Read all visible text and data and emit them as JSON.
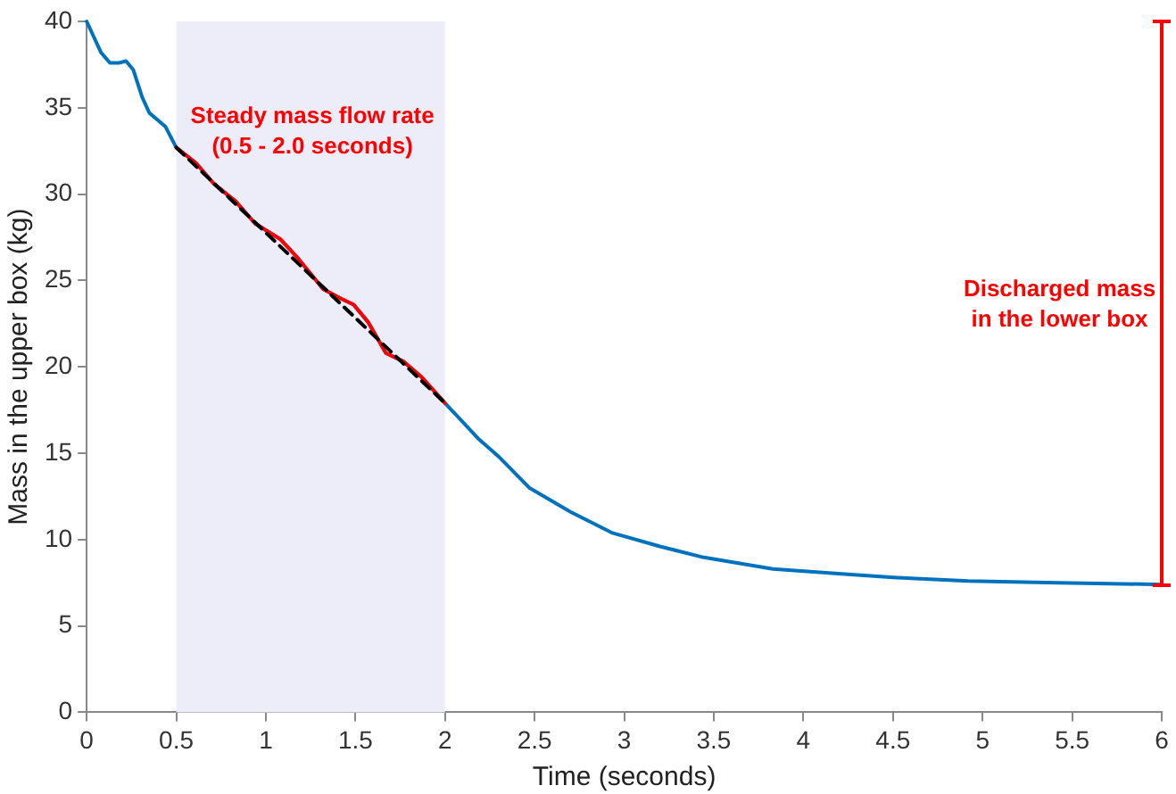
{
  "chart_data": {
    "type": "line",
    "xlabel": "Time (seconds)",
    "ylabel": "Mass in the upper box (kg)",
    "xlim": [
      0,
      6
    ],
    "xticks": [
      0,
      0.5,
      1,
      1.5,
      2,
      2.5,
      3,
      3.5,
      4,
      4.5,
      5,
      5.5,
      6
    ],
    "ylim": [
      0,
      40
    ],
    "yticks": [
      0,
      5,
      10,
      15,
      20,
      25,
      30,
      35,
      40
    ],
    "grid": false,
    "legend": false,
    "marker": "none",
    "series": [
      {
        "color": "#0072bd",
        "x": [
          0,
          0.08,
          0.13,
          0.18,
          0.22,
          0.26,
          0.31,
          0.35,
          0.44,
          0.5,
          0.61,
          0.71,
          0.83,
          0.94,
          1.08,
          1.17,
          1.32,
          1.41,
          1.49,
          1.57,
          1.67,
          1.77,
          1.87,
          2.0,
          2.19,
          2.3,
          2.47,
          2.7,
          2.93,
          3.2,
          3.43,
          3.83,
          4.23,
          4.52,
          4.92,
          5.42,
          6.0
        ],
        "values": [
          40,
          38.2,
          37.6,
          37.6,
          37.7,
          37.2,
          35.6,
          34.7,
          33.9,
          32.7,
          31.8,
          30.6,
          29.6,
          28.3,
          27.4,
          26.4,
          24.5,
          24.0,
          23.6,
          22.6,
          20.8,
          20.3,
          19.4,
          17.9,
          15.8,
          14.8,
          13.0,
          11.6,
          10.4,
          9.6,
          9.0,
          8.3,
          8.0,
          7.8,
          7.6,
          7.5,
          7.4
        ]
      },
      {
        "color": "#ff0000",
        "x": [
          0.5,
          0.61,
          0.71,
          0.83,
          0.94,
          1.08,
          1.17,
          1.32,
          1.41,
          1.49,
          1.57,
          1.67,
          1.77,
          1.87,
          2.0
        ],
        "values": [
          32.7,
          31.8,
          30.6,
          29.6,
          28.3,
          27.4,
          26.4,
          24.5,
          24.0,
          23.6,
          22.6,
          20.8,
          20.3,
          19.4,
          17.9
        ]
      },
      {
        "color": "#000000",
        "line_style": "dashed",
        "x": [
          0.5,
          2.0
        ],
        "values": [
          32.7,
          17.9
        ]
      }
    ],
    "bands": [
      {
        "axis": "x",
        "from": 0.5,
        "to": 2.0,
        "color": "#ededfa"
      }
    ],
    "annotations": [
      "Steady mass flow rate\n(0.5 - 2.0 seconds)",
      "Discharged mass\nin the lower box"
    ]
  }
}
